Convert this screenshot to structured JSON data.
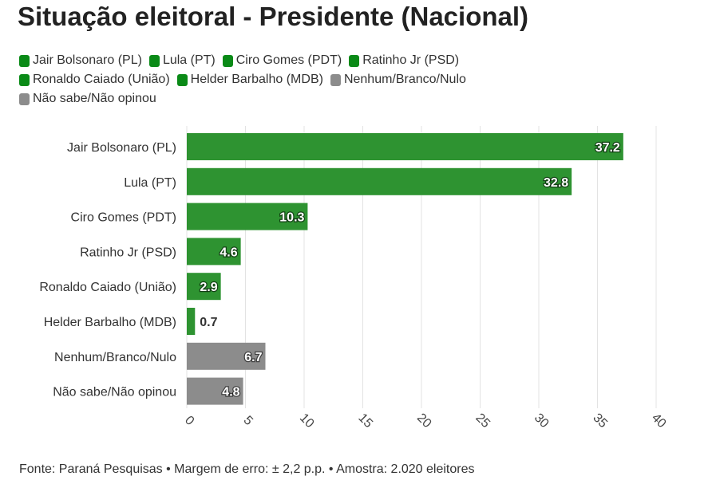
{
  "title": "Situação eleitoral - Presidente (Nacional)",
  "source": "Fonte: Paraná Pesquisas • Margem de erro: ± 2,2 p.p. • Amostra: 2.020 eleitores",
  "colors": {
    "green": "#2e9331",
    "gray": "#8c8c8c",
    "swatch_green": "#0a8a17"
  },
  "legend": [
    [
      {
        "label": "Jair Bolsonaro (PL)",
        "color": "#0a8a17"
      },
      {
        "label": "Lula (PT)",
        "color": "#0a8a17"
      },
      {
        "label": "Ciro Gomes (PDT)",
        "color": "#0a8a17"
      },
      {
        "label": "Ratinho Jr (PSD)",
        "color": "#0a8a17"
      }
    ],
    [
      {
        "label": "Ronaldo Caiado (União)",
        "color": "#0a8a17"
      },
      {
        "label": "Helder Barbalho (MDB)",
        "color": "#0a8a17"
      },
      {
        "label": "Nenhum/Branco/Nulo",
        "color": "#8c8c8c"
      }
    ],
    [
      {
        "label": "Não sabe/Não opinou",
        "color": "#8c8c8c"
      }
    ]
  ],
  "chart_data": {
    "type": "bar",
    "orientation": "horizontal",
    "categories": [
      "Jair Bolsonaro (PL)",
      "Lula (PT)",
      "Ciro Gomes (PDT)",
      "Ratinho Jr (PSD)",
      "Ronaldo Caiado (União)",
      "Helder Barbalho (MDB)",
      "Nenhum/Branco/Nulo",
      "Não sabe/Não opinou"
    ],
    "values": [
      37.2,
      32.8,
      10.3,
      4.6,
      2.9,
      0.7,
      6.7,
      4.8
    ],
    "labels": [
      "37.2",
      "32.8",
      "10.3",
      "4.6",
      "2.9",
      "0.7",
      "6.7",
      "4.8"
    ],
    "colors": [
      "#2e9331",
      "#2e9331",
      "#2e9331",
      "#2e9331",
      "#2e9331",
      "#2e9331",
      "#8c8c8c",
      "#8c8c8c"
    ],
    "xlim": [
      0,
      40
    ],
    "xticks": [
      "0",
      "5",
      "10",
      "15",
      "20",
      "25",
      "30",
      "35",
      "40"
    ],
    "xtick_values": [
      0,
      5,
      10,
      15,
      20,
      25,
      30,
      35,
      40
    ],
    "grid": true,
    "legend_position": "top-left"
  }
}
